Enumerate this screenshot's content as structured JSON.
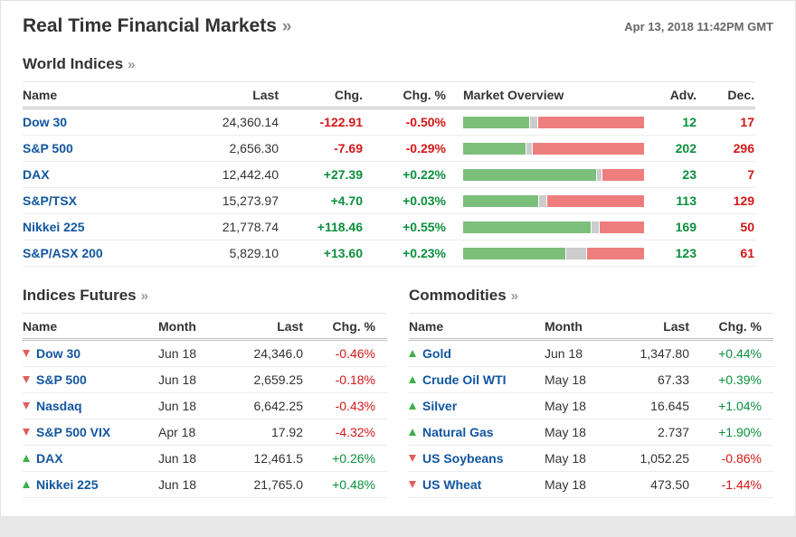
{
  "header": {
    "title": "Real Time Financial Markets",
    "arrow": "»",
    "timestamp": "Apr 13, 2018 11:42PM GMT"
  },
  "world_indices": {
    "heading": "World Indices",
    "arrow": "»",
    "columns": {
      "name": "Name",
      "last": "Last",
      "chg": "Chg.",
      "chg_pct": "Chg. %",
      "overview": "Market Overview",
      "adv": "Adv.",
      "dec": "Dec."
    },
    "rows": [
      {
        "name": "Dow 30",
        "last": "24,360.14",
        "chg": "-122.91",
        "chg_pct": "-0.50%",
        "adv": "12",
        "dec": "17",
        "bar": {
          "adv_pct": 37,
          "unch_pct": 4,
          "dec_pct": 59
        }
      },
      {
        "name": "S&P 500",
        "last": "2,656.30",
        "chg": "-7.69",
        "chg_pct": "-0.29%",
        "adv": "202",
        "dec": "296",
        "bar": {
          "adv_pct": 35,
          "unch_pct": 3,
          "dec_pct": 62
        }
      },
      {
        "name": "DAX",
        "last": "12,442.40",
        "chg": "+27.39",
        "chg_pct": "+0.22%",
        "adv": "23",
        "dec": "7",
        "bar": {
          "adv_pct": 74,
          "unch_pct": 3,
          "dec_pct": 23
        }
      },
      {
        "name": "S&P/TSX",
        "last": "15,273.97",
        "chg": "+4.70",
        "chg_pct": "+0.03%",
        "adv": "113",
        "dec": "129",
        "bar": {
          "adv_pct": 42,
          "unch_pct": 4,
          "dec_pct": 54
        }
      },
      {
        "name": "Nikkei 225",
        "last": "21,778.74",
        "chg": "+118.46",
        "chg_pct": "+0.55%",
        "adv": "169",
        "dec": "50",
        "bar": {
          "adv_pct": 71,
          "unch_pct": 4,
          "dec_pct": 25
        }
      },
      {
        "name": "S&P/ASX 200",
        "last": "5,829.10",
        "chg": "+13.60",
        "chg_pct": "+0.23%",
        "adv": "123",
        "dec": "61",
        "bar": {
          "adv_pct": 57,
          "unch_pct": 11,
          "dec_pct": 32
        }
      }
    ]
  },
  "indices_futures": {
    "heading": "Indices Futures",
    "arrow": "»",
    "columns": {
      "name": "Name",
      "month": "Month",
      "last": "Last",
      "chg_pct": "Chg. %"
    },
    "rows": [
      {
        "dir": "down",
        "name": "Dow 30",
        "month": "Jun 18",
        "last": "24,346.0",
        "chg_pct": "-0.46%"
      },
      {
        "dir": "down",
        "name": "S&P 500",
        "month": "Jun 18",
        "last": "2,659.25",
        "chg_pct": "-0.18%"
      },
      {
        "dir": "down",
        "name": "Nasdaq",
        "month": "Jun 18",
        "last": "6,642.25",
        "chg_pct": "-0.43%"
      },
      {
        "dir": "down",
        "name": "S&P 500 VIX",
        "month": "Apr 18",
        "last": "17.92",
        "chg_pct": "-4.32%"
      },
      {
        "dir": "up",
        "name": "DAX",
        "month": "Jun 18",
        "last": "12,461.5",
        "chg_pct": "+0.26%"
      },
      {
        "dir": "up",
        "name": "Nikkei 225",
        "month": "Jun 18",
        "last": "21,765.0",
        "chg_pct": "+0.48%"
      }
    ]
  },
  "commodities": {
    "heading": "Commodities",
    "arrow": "»",
    "columns": {
      "name": "Name",
      "month": "Month",
      "last": "Last",
      "chg_pct": "Chg. %"
    },
    "rows": [
      {
        "dir": "up",
        "name": "Gold",
        "month": "Jun 18",
        "last": "1,347.80",
        "chg_pct": "+0.44%"
      },
      {
        "dir": "up",
        "name": "Crude Oil WTI",
        "month": "May 18",
        "last": "67.33",
        "chg_pct": "+0.39%"
      },
      {
        "dir": "up",
        "name": "Silver",
        "month": "May 18",
        "last": "16.645",
        "chg_pct": "+1.04%"
      },
      {
        "dir": "up",
        "name": "Natural Gas",
        "month": "May 18",
        "last": "2.737",
        "chg_pct": "+1.90%"
      },
      {
        "dir": "down",
        "name": "US Soybeans",
        "month": "May 18",
        "last": "1,052.25",
        "chg_pct": "-0.86%"
      },
      {
        "dir": "down",
        "name": "US Wheat",
        "month": "May 18",
        "last": "473.50",
        "chg_pct": "-1.44%"
      }
    ]
  },
  "colors": {
    "positive": "#0a8f3c",
    "negative": "#d31717",
    "link": "#1256a0",
    "bar_adv": "#7cbf7b",
    "bar_unch": "#cccccc",
    "bar_dec": "#ee7e7e",
    "arrow_up": "#3fae49",
    "arrow_down": "#e15e5e"
  }
}
